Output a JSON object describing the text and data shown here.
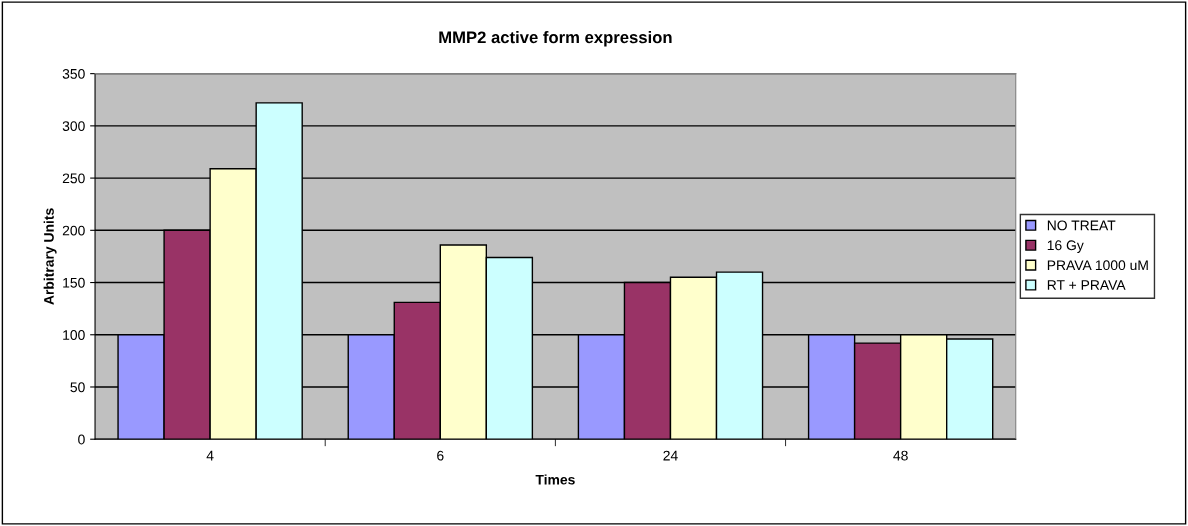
{
  "chart_data": {
    "type": "bar",
    "title": "MMP2 active form expression",
    "xlabel": "Times",
    "ylabel": "Arbitrary Units",
    "categories": [
      "4",
      "6",
      "24",
      "48"
    ],
    "series": [
      {
        "name": "NO TREAT",
        "color": "#9999ff",
        "values": [
          100,
          100,
          100,
          100
        ]
      },
      {
        "name": "16 Gy",
        "color": "#993366",
        "values": [
          200,
          131,
          150,
          92
        ]
      },
      {
        "name": "PRAVA 1000 uM",
        "color": "#ffffcc",
        "values": [
          259,
          186,
          155,
          100
        ]
      },
      {
        "name": "RT + PRAVA",
        "color": "#ccffff",
        "values": [
          322,
          174,
          160,
          96
        ]
      }
    ],
    "ylim": [
      0,
      350
    ],
    "yticks": [
      0,
      50,
      100,
      150,
      200,
      250,
      300,
      350
    ],
    "grid": "y",
    "legend": "right"
  }
}
